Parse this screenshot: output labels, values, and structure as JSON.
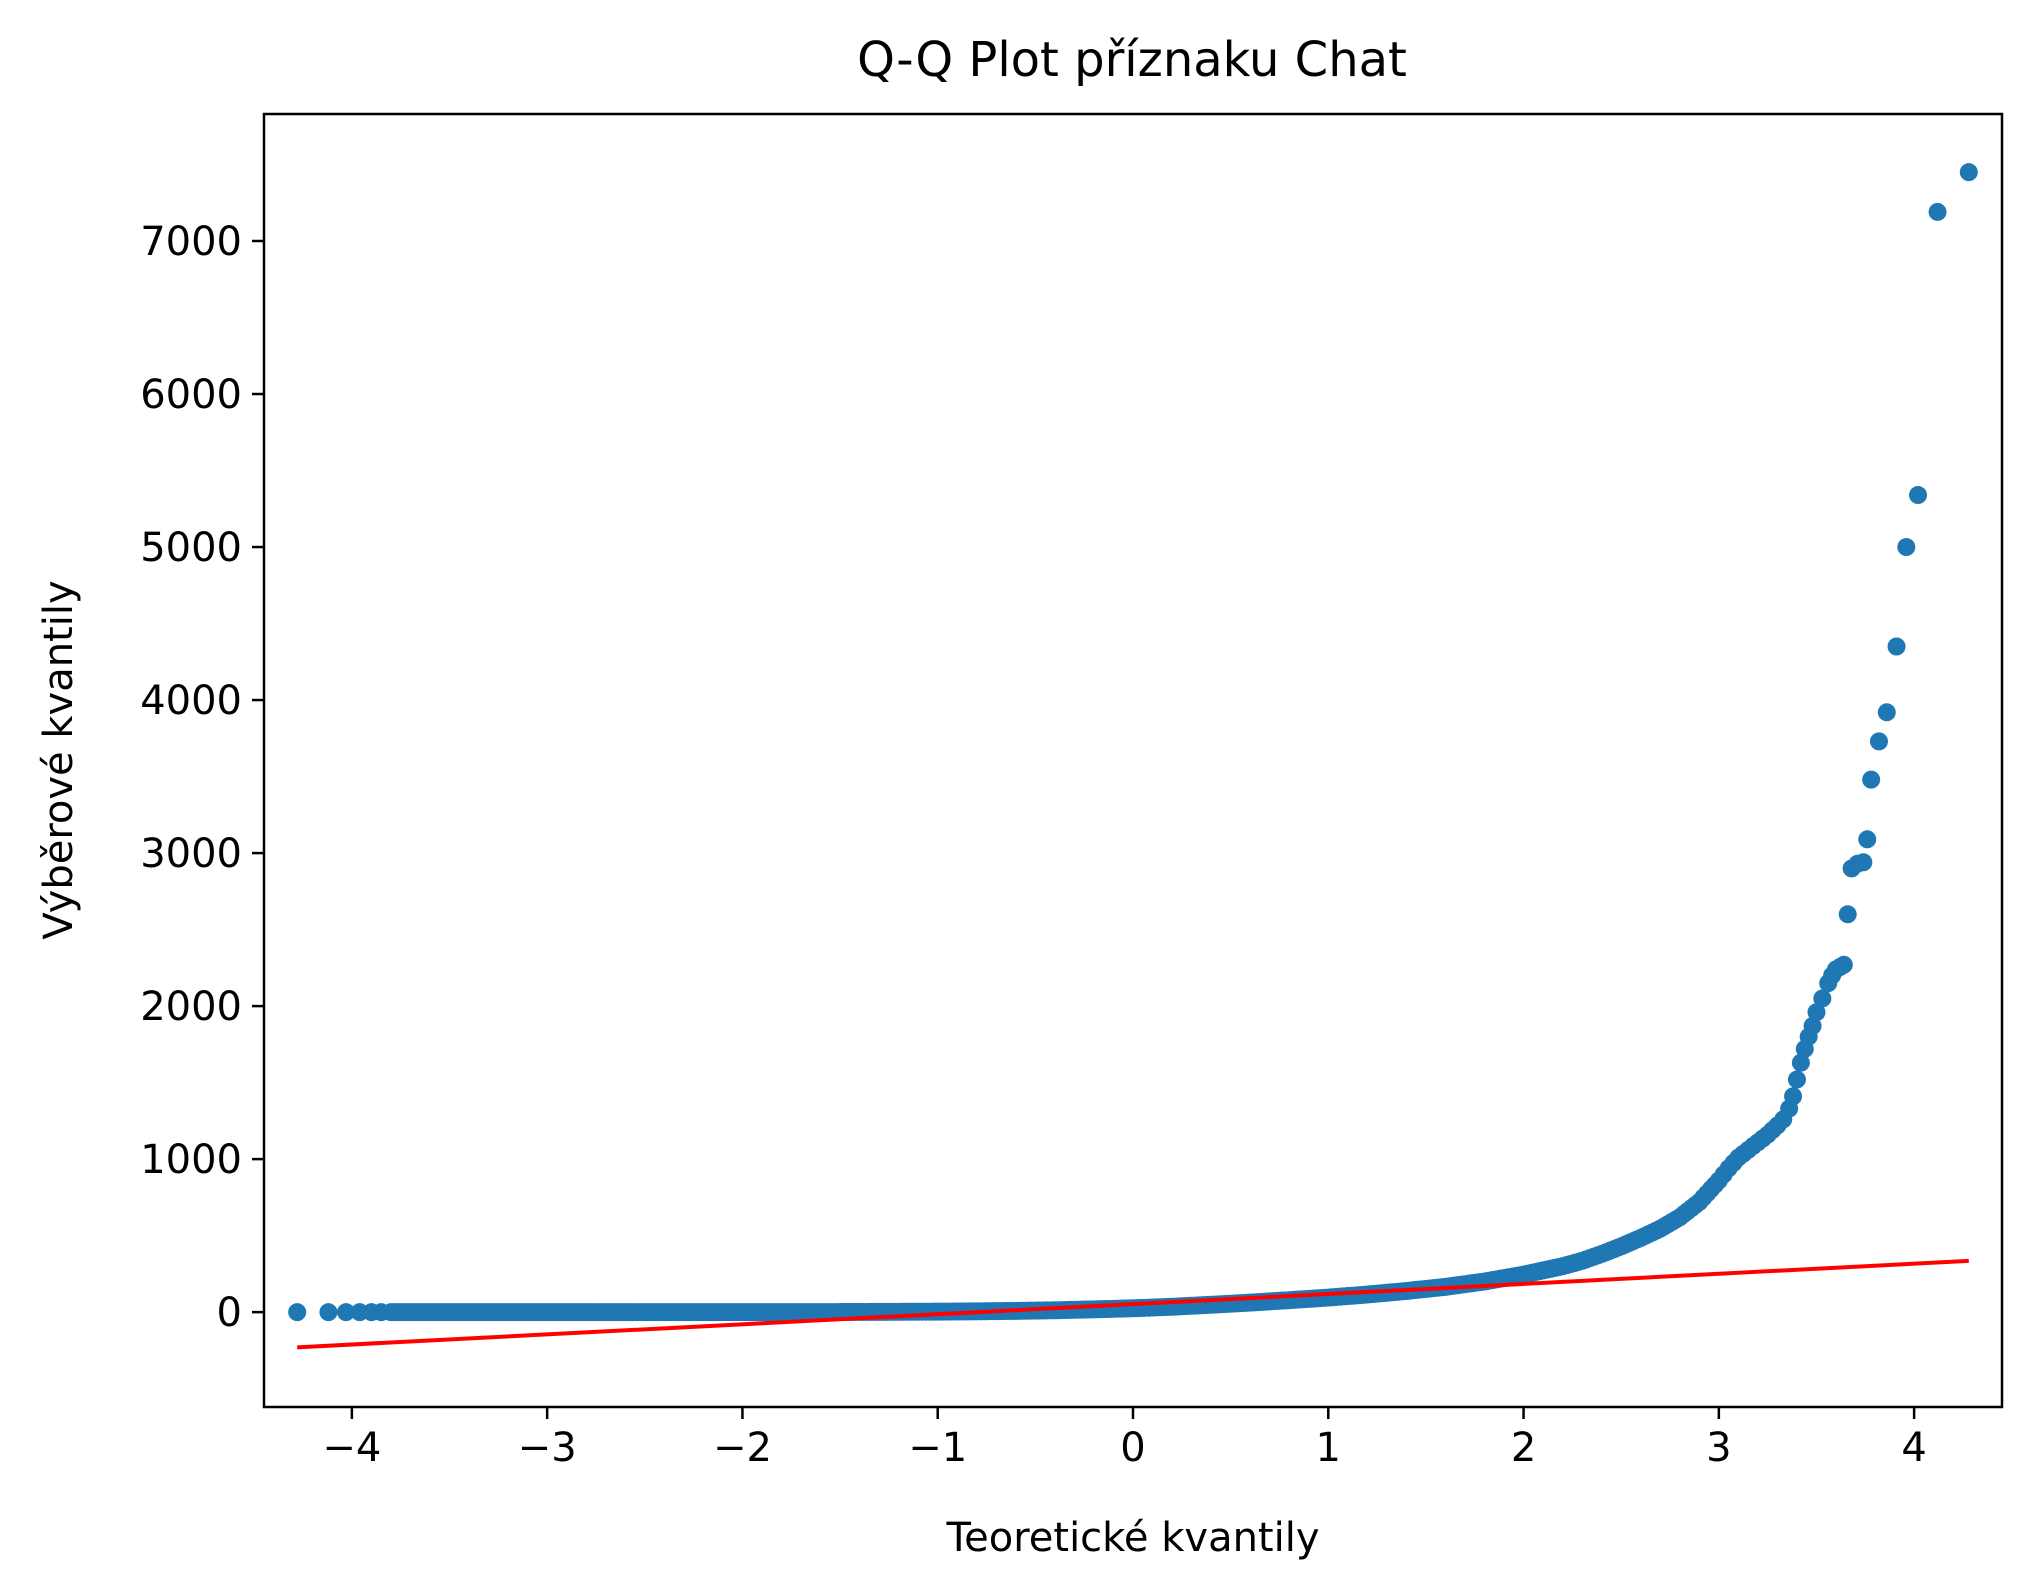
{
  "chart_data": {
    "type": "scatter",
    "title": "Q-Q Plot příznaku Chat",
    "xlabel": "Teoretické kvantily",
    "ylabel": "Výběrové kvantily",
    "xlim": [
      -4.45,
      4.45
    ],
    "ylim": [
      -620,
      7830
    ],
    "x_ticks": [
      -4,
      -3,
      -2,
      -1,
      0,
      1,
      2,
      3,
      4
    ],
    "x_tick_labels": [
      "−4",
      "−3",
      "−2",
      "−1",
      "0",
      "1",
      "2",
      "3",
      "4"
    ],
    "y_ticks": [
      0,
      1000,
      2000,
      3000,
      4000,
      5000,
      6000,
      7000
    ],
    "y_tick_labels": [
      "0",
      "1000",
      "2000",
      "3000",
      "4000",
      "5000",
      "6000",
      "7000"
    ],
    "grid": false,
    "series": [
      {
        "kind": "points",
        "color": "#1f77b4",
        "points": [
          [
            -4.28,
            0
          ],
          [
            -4.12,
            0
          ],
          [
            -4.03,
            0
          ],
          [
            -3.96,
            0
          ],
          [
            -3.9,
            0
          ],
          [
            -3.85,
            0
          ],
          [
            -3.8,
            0
          ],
          [
            -3.6,
            0
          ],
          [
            -3.4,
            0
          ],
          [
            -3.2,
            0
          ],
          [
            -3.0,
            0
          ],
          [
            -2.8,
            0
          ],
          [
            -2.6,
            0
          ],
          [
            -2.4,
            0
          ],
          [
            -2.2,
            0
          ],
          [
            -2.0,
            0
          ],
          [
            -1.8,
            0
          ],
          [
            -1.6,
            0
          ],
          [
            -1.4,
            1
          ],
          [
            -1.2,
            2
          ],
          [
            -1.0,
            3
          ],
          [
            -0.8,
            5
          ],
          [
            -0.6,
            8
          ],
          [
            -0.4,
            12
          ],
          [
            -0.2,
            18
          ],
          [
            0.0,
            25
          ],
          [
            0.2,
            35
          ],
          [
            0.4,
            48
          ],
          [
            0.6,
            62
          ],
          [
            0.8,
            78
          ],
          [
            1.0,
            95
          ],
          [
            1.2,
            115
          ],
          [
            1.4,
            138
          ],
          [
            1.6,
            165
          ],
          [
            1.8,
            200
          ],
          [
            2.0,
            245
          ],
          [
            2.2,
            300
          ],
          [
            2.3,
            335
          ],
          [
            2.4,
            380
          ],
          [
            2.5,
            430
          ],
          [
            2.6,
            485
          ],
          [
            2.7,
            545
          ],
          [
            2.8,
            620
          ],
          [
            2.9,
            720
          ],
          [
            3.0,
            860
          ],
          [
            3.05,
            940
          ],
          [
            3.1,
            1010
          ],
          [
            3.15,
            1060
          ],
          [
            3.2,
            1110
          ],
          [
            3.25,
            1160
          ],
          [
            3.3,
            1220
          ],
          [
            3.33,
            1260
          ],
          [
            3.36,
            1330
          ],
          [
            3.38,
            1410
          ],
          [
            3.4,
            1520
          ],
          [
            3.42,
            1630
          ],
          [
            3.44,
            1720
          ],
          [
            3.46,
            1800
          ],
          [
            3.48,
            1870
          ],
          [
            3.5,
            1960
          ],
          [
            3.53,
            2050
          ],
          [
            3.56,
            2150
          ],
          [
            3.58,
            2200
          ],
          [
            3.6,
            2240
          ],
          [
            3.62,
            2255
          ],
          [
            3.64,
            2270
          ],
          [
            3.66,
            2600
          ],
          [
            3.68,
            2900
          ],
          [
            3.71,
            2930
          ],
          [
            3.74,
            2940
          ],
          [
            3.76,
            3090
          ],
          [
            3.78,
            3480
          ],
          [
            3.82,
            3730
          ],
          [
            3.86,
            3920
          ],
          [
            3.91,
            4350
          ],
          [
            3.96,
            5000
          ],
          [
            4.02,
            5340
          ],
          [
            4.12,
            7190
          ],
          [
            4.28,
            7450
          ]
        ]
      },
      {
        "kind": "line",
        "color": "#ff0000",
        "points": [
          [
            -4.28,
            -230
          ],
          [
            4.28,
            335
          ]
        ]
      }
    ]
  }
}
